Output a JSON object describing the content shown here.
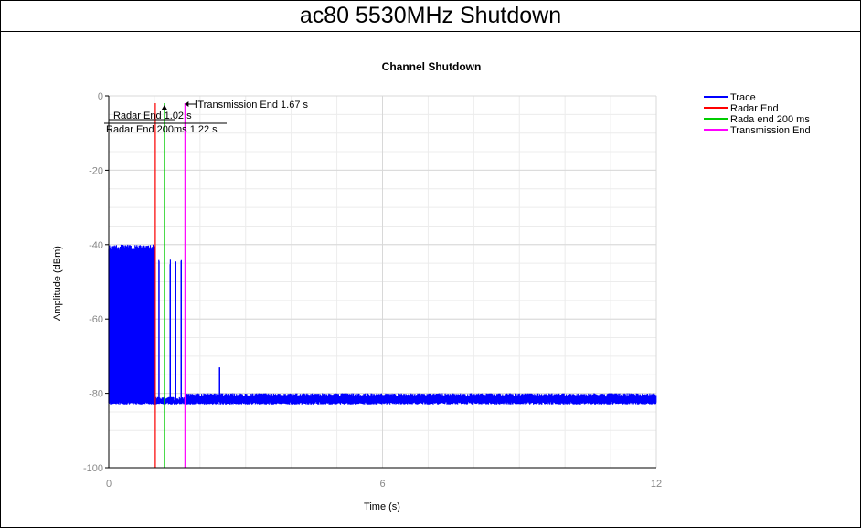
{
  "page_title": "ac80 5530MHz Shutdown",
  "chart_data": {
    "type": "line",
    "title": "Channel Shutdown",
    "xlabel": "Time (s)",
    "ylabel": "Amplitude (dBm)",
    "xlim": [
      0,
      12
    ],
    "ylim": [
      -100,
      0
    ],
    "x_ticks": [
      0,
      6,
      12
    ],
    "y_ticks": [
      0,
      -20,
      -40,
      -60,
      -80,
      -100
    ],
    "grid": true,
    "legend_position": "top-right",
    "series": [
      {
        "name": "Trace",
        "color": "#0000ff",
        "kind": "trace",
        "profile": [
          {
            "from": 0.0,
            "to": 1.02,
            "low": -83,
            "high": -40
          },
          {
            "from": 1.02,
            "to": 1.67,
            "low": -83,
            "high": -81,
            "bursts_at": [
              1.1,
              1.23,
              1.35,
              1.47,
              1.59
            ],
            "burst_peak": -44
          },
          {
            "from": 1.67,
            "to": 12.0,
            "low": -83,
            "high": -80
          }
        ],
        "spike": {
          "x": 2.43,
          "y": -73
        }
      },
      {
        "name": "Radar End",
        "color": "#ff0000",
        "kind": "vline",
        "x": 1.02
      },
      {
        "name": "Rada end 200 ms",
        "color": "#00cc00",
        "kind": "vline",
        "x": 1.22
      },
      {
        "name": "Transmission End",
        "color": "#ff00ff",
        "kind": "vline",
        "x": 1.67
      }
    ],
    "annotations": [
      {
        "text": "Radar End 1.02 s",
        "x": 1.02
      },
      {
        "text": "Radar End 200ms 1.22 s",
        "x": 1.22
      },
      {
        "text": "Transmission End 1.67 s",
        "x": 1.67
      }
    ]
  }
}
